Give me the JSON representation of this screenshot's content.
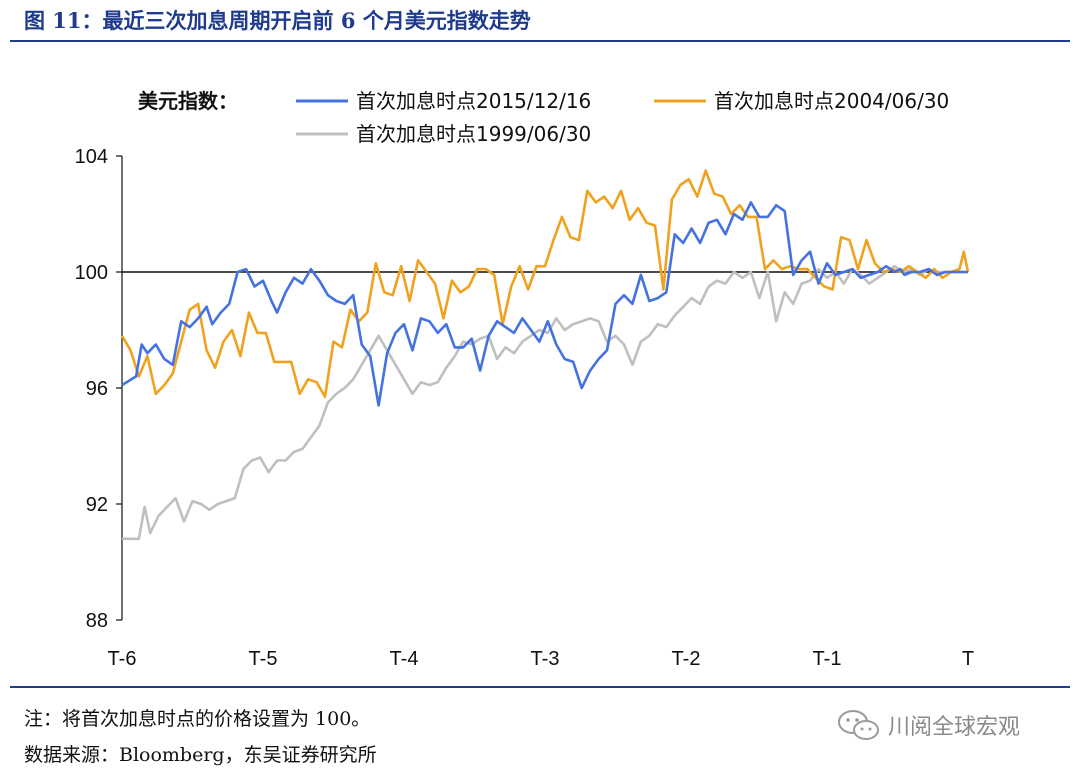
{
  "figure": {
    "title": "图 11：最近三次加息周期开启前 6 个月美元指数走势",
    "note": "注：将首次加息时点的价格设置为 100。",
    "source": "数据来源：Bloomberg，东吴证券研究所",
    "watermark": "川阅全球宏观",
    "watermark_icon": "wechat-icon"
  },
  "chart_data": {
    "type": "line",
    "ylabel": "",
    "legend_title": "美元指数：",
    "legend_placement": "top",
    "x_ticks": [
      "T-6",
      "T-5",
      "T-4",
      "T-3",
      "T-2",
      "T-1",
      "T"
    ],
    "xlim": [
      -6,
      0
    ],
    "ylim": [
      88,
      104
    ],
    "y_ticks": [
      88,
      92,
      96,
      100,
      104
    ],
    "grid": false,
    "reference_line": 100,
    "series": [
      {
        "name": "首次加息时点2015/12/16",
        "color": "#4472e0",
        "x": [
          -6.0,
          -5.9,
          -5.86,
          -5.82,
          -5.76,
          -5.7,
          -5.64,
          -5.58,
          -5.52,
          -5.46,
          -5.4,
          -5.36,
          -5.3,
          -5.24,
          -5.18,
          -5.12,
          -5.06,
          -5.0,
          -4.94,
          -4.9,
          -4.84,
          -4.78,
          -4.72,
          -4.66,
          -4.6,
          -4.54,
          -4.48,
          -4.42,
          -4.36,
          -4.3,
          -4.24,
          -4.18,
          -4.12,
          -4.06,
          -4.0,
          -3.94,
          -3.88,
          -3.82,
          -3.76,
          -3.7,
          -3.64,
          -3.58,
          -3.52,
          -3.46,
          -3.4,
          -3.34,
          -3.28,
          -3.22,
          -3.16,
          -3.1,
          -3.04,
          -2.98,
          -2.92,
          -2.86,
          -2.8,
          -2.74,
          -2.68,
          -2.62,
          -2.56,
          -2.5,
          -2.44,
          -2.38,
          -2.32,
          -2.26,
          -2.2,
          -2.14,
          -2.08,
          -2.02,
          -1.96,
          -1.9,
          -1.84,
          -1.78,
          -1.72,
          -1.66,
          -1.6,
          -1.54,
          -1.48,
          -1.42,
          -1.36,
          -1.3,
          -1.24,
          -1.18,
          -1.12,
          -1.06,
          -1.0,
          -0.94,
          -0.88,
          -0.82,
          -0.76,
          -0.7,
          -0.64,
          -0.58,
          -0.52,
          -0.48,
          -0.45,
          -0.4,
          -0.34,
          -0.28,
          -0.22,
          -0.16,
          -0.1,
          -0.05,
          0.0
        ],
        "y": [
          96.1,
          96.4,
          97.5,
          97.2,
          97.5,
          97.0,
          96.8,
          98.3,
          98.1,
          98.4,
          98.8,
          98.2,
          98.6,
          98.9,
          100.0,
          100.1,
          99.5,
          99.7,
          99.0,
          98.6,
          99.3,
          99.8,
          99.6,
          100.1,
          99.7,
          99.2,
          99.0,
          98.9,
          99.2,
          97.5,
          97.1,
          95.4,
          97.2,
          97.9,
          98.2,
          97.3,
          98.4,
          98.3,
          97.9,
          98.2,
          97.4,
          97.4,
          97.7,
          96.6,
          97.8,
          98.3,
          98.1,
          97.9,
          98.4,
          98.0,
          97.6,
          98.3,
          97.5,
          97.0,
          96.9,
          96.0,
          96.6,
          97.0,
          97.3,
          98.9,
          99.2,
          98.9,
          99.9,
          99.0,
          99.1,
          99.3,
          101.3,
          101.0,
          101.5,
          101.0,
          101.7,
          101.8,
          101.3,
          102.0,
          101.8,
          102.4,
          101.9,
          101.9,
          102.3,
          102.1,
          99.9,
          100.4,
          100.7,
          99.6,
          100.3,
          99.9,
          100.0,
          100.1,
          99.8,
          99.9,
          100.0,
          100.2,
          100.0,
          100.1,
          99.9,
          100.0,
          100.0,
          100.1,
          99.9,
          100.0,
          100.0,
          100.0,
          100.0
        ]
      },
      {
        "name": "首次加息时点2004/06/30",
        "color": "#f0a21e",
        "x": [
          -6.0,
          -5.94,
          -5.88,
          -5.82,
          -5.76,
          -5.7,
          -5.64,
          -5.58,
          -5.52,
          -5.46,
          -5.4,
          -5.34,
          -5.28,
          -5.22,
          -5.16,
          -5.1,
          -5.04,
          -4.98,
          -4.92,
          -4.86,
          -4.8,
          -4.74,
          -4.68,
          -4.62,
          -4.56,
          -4.5,
          -4.44,
          -4.38,
          -4.32,
          -4.26,
          -4.2,
          -4.14,
          -4.08,
          -4.02,
          -3.96,
          -3.9,
          -3.84,
          -3.78,
          -3.72,
          -3.66,
          -3.6,
          -3.54,
          -3.48,
          -3.42,
          -3.36,
          -3.3,
          -3.24,
          -3.18,
          -3.12,
          -3.06,
          -3.0,
          -2.94,
          -2.88,
          -2.82,
          -2.76,
          -2.7,
          -2.64,
          -2.58,
          -2.52,
          -2.46,
          -2.4,
          -2.34,
          -2.28,
          -2.22,
          -2.16,
          -2.1,
          -2.04,
          -1.98,
          -1.92,
          -1.86,
          -1.8,
          -1.74,
          -1.68,
          -1.62,
          -1.56,
          -1.5,
          -1.44,
          -1.38,
          -1.32,
          -1.26,
          -1.2,
          -1.14,
          -1.08,
          -1.02,
          -0.96,
          -0.9,
          -0.84,
          -0.78,
          -0.72,
          -0.66,
          -0.6,
          -0.54,
          -0.48,
          -0.42,
          -0.36,
          -0.3,
          -0.24,
          -0.18,
          -0.12,
          -0.06,
          -0.03,
          0.0
        ],
        "y": [
          97.8,
          97.3,
          96.4,
          97.1,
          95.8,
          96.1,
          96.5,
          97.6,
          98.7,
          98.9,
          97.3,
          96.7,
          97.6,
          98.0,
          97.1,
          98.6,
          97.9,
          97.9,
          96.9,
          96.9,
          96.9,
          95.8,
          96.3,
          96.2,
          95.7,
          97.6,
          97.4,
          98.7,
          98.3,
          98.6,
          100.3,
          99.3,
          99.2,
          100.2,
          99.0,
          100.4,
          100.0,
          99.6,
          98.4,
          99.7,
          99.3,
          99.5,
          100.1,
          100.1,
          99.9,
          98.2,
          99.5,
          100.2,
          99.4,
          100.2,
          100.2,
          101.1,
          101.9,
          101.2,
          101.1,
          102.8,
          102.4,
          102.6,
          102.2,
          102.8,
          101.8,
          102.2,
          101.7,
          101.6,
          99.4,
          102.5,
          103.0,
          103.2,
          102.6,
          103.5,
          102.7,
          102.6,
          102.0,
          102.3,
          101.9,
          101.9,
          100.1,
          100.4,
          100.1,
          100.2,
          100.1,
          100.1,
          99.8,
          99.5,
          99.4,
          101.2,
          101.1,
          100.1,
          101.1,
          100.3,
          100.0,
          100.1,
          100.0,
          100.2,
          100.0,
          99.8,
          100.1,
          99.8,
          100.0,
          100.1,
          100.7,
          100.0
        ]
      },
      {
        "name": "首次加息时点1999/06/30",
        "color": "#bfbfbf",
        "x": [
          -6.0,
          -5.92,
          -5.88,
          -5.84,
          -5.8,
          -5.74,
          -5.68,
          -5.62,
          -5.56,
          -5.5,
          -5.44,
          -5.38,
          -5.32,
          -5.26,
          -5.2,
          -5.14,
          -5.08,
          -5.02,
          -4.96,
          -4.9,
          -4.84,
          -4.78,
          -4.72,
          -4.66,
          -4.6,
          -4.54,
          -4.48,
          -4.42,
          -4.36,
          -4.3,
          -4.24,
          -4.18,
          -4.12,
          -4.06,
          -4.0,
          -3.94,
          -3.88,
          -3.82,
          -3.76,
          -3.7,
          -3.64,
          -3.58,
          -3.52,
          -3.46,
          -3.4,
          -3.34,
          -3.28,
          -3.22,
          -3.16,
          -3.1,
          -3.04,
          -2.98,
          -2.92,
          -2.86,
          -2.8,
          -2.74,
          -2.68,
          -2.62,
          -2.56,
          -2.5,
          -2.44,
          -2.38,
          -2.32,
          -2.26,
          -2.2,
          -2.14,
          -2.08,
          -2.02,
          -1.96,
          -1.9,
          -1.84,
          -1.78,
          -1.72,
          -1.66,
          -1.6,
          -1.54,
          -1.48,
          -1.42,
          -1.36,
          -1.3,
          -1.24,
          -1.18,
          -1.12,
          -1.06,
          -1.0,
          -0.94,
          -0.88,
          -0.82,
          -0.76,
          -0.7,
          -0.64,
          -0.58,
          -0.52,
          -0.46,
          -0.4,
          -0.34,
          -0.28,
          -0.22,
          -0.16,
          -0.1,
          -0.05,
          0.0
        ],
        "y": [
          90.8,
          90.8,
          90.8,
          91.9,
          91.0,
          91.6,
          91.9,
          92.2,
          91.4,
          92.1,
          92.0,
          91.8,
          92.0,
          92.1,
          92.2,
          93.2,
          93.5,
          93.6,
          93.1,
          93.5,
          93.5,
          93.8,
          93.9,
          94.3,
          94.7,
          95.5,
          95.8,
          96.0,
          96.3,
          96.8,
          97.3,
          97.8,
          97.3,
          96.8,
          96.3,
          95.8,
          96.2,
          96.1,
          96.2,
          96.7,
          97.1,
          97.6,
          97.5,
          97.7,
          97.8,
          97.0,
          97.4,
          97.2,
          97.6,
          97.8,
          98.0,
          97.9,
          98.4,
          98.0,
          98.2,
          98.3,
          98.4,
          98.3,
          97.6,
          97.8,
          97.5,
          96.8,
          97.6,
          97.8,
          98.2,
          98.1,
          98.5,
          98.8,
          99.1,
          98.9,
          99.5,
          99.7,
          99.6,
          100.0,
          99.8,
          100.0,
          99.1,
          100.0,
          98.3,
          99.3,
          98.9,
          99.6,
          99.7,
          100.1,
          99.8,
          100.0,
          99.6,
          100.1,
          99.9,
          99.6,
          99.8,
          100.0,
          100.2,
          100.0,
          100.1,
          99.9,
          100.1,
          100.0,
          100.0,
          100.0,
          100.0,
          100.0
        ]
      }
    ]
  }
}
